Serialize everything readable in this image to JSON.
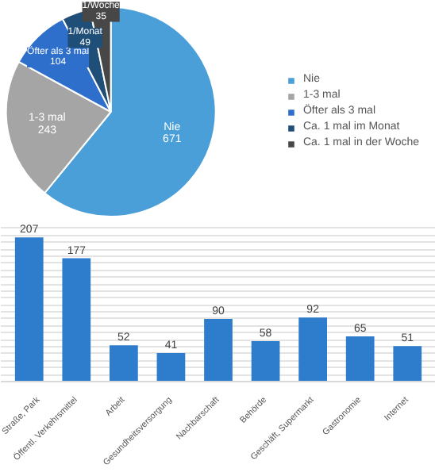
{
  "chart_data": [
    {
      "type": "pie",
      "categories": [
        "Nie",
        "1-3 mal",
        "Öfter als 3 mal",
        "Ca. 1 mal im Monat",
        "Ca. 1 mal in der Woche"
      ],
      "values": [
        671,
        243,
        104,
        49,
        35
      ],
      "colors": [
        "#4a9fd8",
        "#a5a5a5",
        "#2f6fcc",
        "#1f4e79",
        "#474747"
      ],
      "value_labels": [
        "Nie\n671",
        "1-3 mal\n243",
        "Öfter als 3 mal\n104",
        "1/Monat\n49",
        "1/Woche\n35"
      ],
      "legend": "right"
    },
    {
      "type": "bar",
      "categories": [
        "Straße, Park",
        "Öffentl. Verkehrsmittel",
        "Arbeit",
        "Gesundheitsversorgung",
        "Nachbarschaft",
        "Behörde",
        "Geschäft, Supermarkt",
        "Gastronomie",
        "Internet"
      ],
      "values": [
        207,
        177,
        52,
        41,
        90,
        58,
        92,
        65,
        51
      ],
      "color": "#2e7dcc",
      "data_labels": true,
      "grid": "y",
      "tick_labels": "x"
    }
  ]
}
